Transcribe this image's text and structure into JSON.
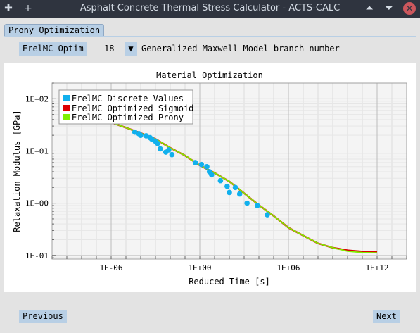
{
  "window": {
    "title": "Asphalt Concrete Thermal Stress Calculator - ACTS-CALC",
    "pin_glyph": "✚",
    "left_glyph": "+",
    "up_glyph": "⏶",
    "down_glyph": "⏷",
    "close_glyph": "✕"
  },
  "tabs": [
    {
      "label": "Prony Optimization"
    }
  ],
  "controls": {
    "erel_button_label": "ErelMC Optim",
    "branch_number": "18",
    "dropdown_glyph": "▼",
    "branch_description": "Generalized Maxwell Model branch number"
  },
  "nav": {
    "previous_label": "Previous",
    "next_label": "Next"
  },
  "colors": {
    "accent": "#b8cfe5",
    "discrete": "#11b0ed",
    "sigmoid": "#dd0000",
    "prony": "#7ff000"
  },
  "chart_data": {
    "type": "scatter",
    "title": "Material Optimization",
    "xlabel": "Reduced Time [s]",
    "ylabel": "Relaxation Modulus [GPa]",
    "x_scale": "log",
    "y_scale": "log",
    "xlim": [
      1e-10,
      100000000000000.0
    ],
    "ylim": [
      0.085,
      200
    ],
    "x_ticks": [
      {
        "value": 1e-06,
        "label": "1E-06"
      },
      {
        "value": 1,
        "label": "1E+00"
      },
      {
        "value": 1000000.0,
        "label": "1E+06"
      },
      {
        "value": 1000000000000.0,
        "label": "1E+12"
      }
    ],
    "y_ticks": [
      {
        "value": 100,
        "label": "1E+02"
      },
      {
        "value": 10,
        "label": "1E+01"
      },
      {
        "value": 1,
        "label": "1E+00"
      },
      {
        "value": 0.1,
        "label": "1E-01"
      }
    ],
    "grid": true,
    "legend": "top-left",
    "series": [
      {
        "name": "ErelMC Discrete Values",
        "kind": "points",
        "x": [
          3.98e-05,
          7.41e-05,
          0.0001,
          0.000234,
          0.000427,
          0.00055,
          0.00093,
          0.0014,
          0.0021,
          0.005,
          0.0079,
          0.013,
          0.5,
          1.3,
          3,
          4.5,
          6.3,
          25,
          71,
          100,
          255,
          500,
          1580,
          7900,
          37000
        ],
        "y": [
          23,
          21.5,
          20,
          19.5,
          18,
          17,
          15.5,
          14,
          11,
          9.5,
          10.5,
          8.5,
          6,
          5.5,
          5,
          4,
          3.5,
          2.7,
          2.1,
          1.6,
          2,
          1.5,
          1,
          0.9,
          0.6
        ]
      },
      {
        "name": "ErelMC Optimized Sigmoid",
        "kind": "line",
        "x": [
          1e-06,
          1e-05,
          0.0001,
          0.001,
          0.01,
          0.1,
          1,
          10,
          100,
          1000.0,
          10000.0,
          100000.0,
          1000000.0,
          10000000.0,
          100000000.0,
          1000000000.0,
          10000000000.0,
          100000000000.0,
          1000000000000.0
        ],
        "y": [
          35,
          28,
          22,
          17,
          11.5,
          8.2,
          5.3,
          3.8,
          2.6,
          1.55,
          0.92,
          0.57,
          0.34,
          0.24,
          0.17,
          0.14,
          0.125,
          0.118,
          0.115
        ]
      },
      {
        "name": "ErelMC Optimized Prony",
        "kind": "line",
        "x": [
          1e-06,
          1e-05,
          0.0001,
          0.001,
          0.01,
          0.1,
          1,
          10,
          100,
          1000.0,
          10000.0,
          100000.0,
          1000000.0,
          10000000.0,
          100000000.0,
          1000000000.0,
          10000000000.0,
          100000000000.0,
          1000000000000.0
        ],
        "y": [
          35,
          28,
          22,
          17,
          11.5,
          8.2,
          5.3,
          3.8,
          2.6,
          1.55,
          0.92,
          0.57,
          0.34,
          0.24,
          0.17,
          0.14,
          0.12,
          0.113,
          0.112
        ]
      }
    ]
  }
}
